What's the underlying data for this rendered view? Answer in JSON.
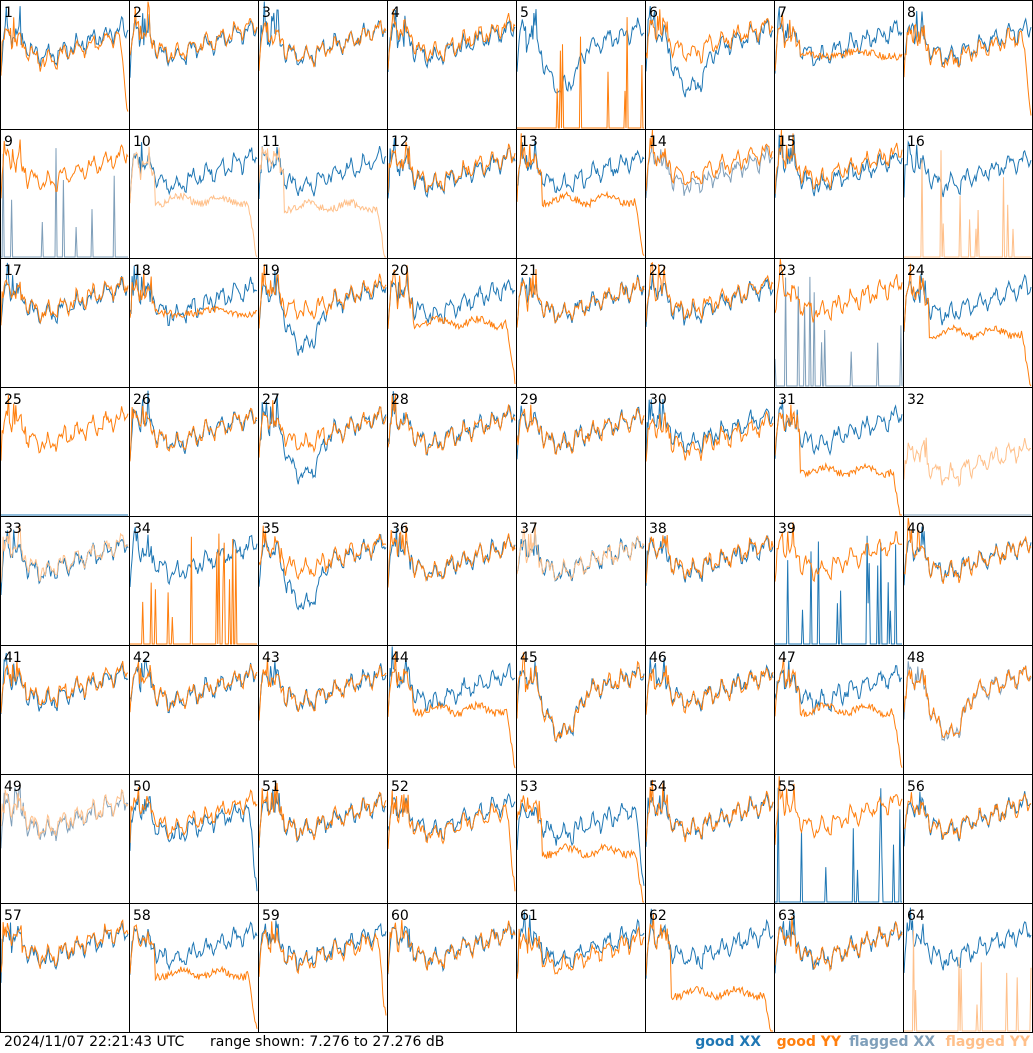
{
  "footer": {
    "timestamp": "2024/11/07 22:21:43 UTC",
    "range": "range shown: 7.276 to 27.276 dB"
  },
  "legend": [
    {
      "key": "good_xx",
      "label": "good XX",
      "color": "#1f77b4"
    },
    {
      "key": "good_yy",
      "label": "good YY",
      "color": "#ff7f0e"
    },
    {
      "key": "flagged_xx",
      "label": "flagged XX",
      "color": "#7f9fba"
    },
    {
      "key": "flagged_yy",
      "label": "flagged YY",
      "color": "#ffc08a"
    }
  ],
  "chart_data": {
    "type": "line",
    "description_units": "spectrum power in dB per antenna panel",
    "ylim": [
      7.276,
      27.276
    ],
    "grid": false,
    "layout": "8x8 small multiples",
    "panels": [
      {
        "label": "1",
        "xx": "good",
        "yy": "good",
        "xx_shape": "normal",
        "yy_shape": "dropoff",
        "yy_level": 0.62
      },
      {
        "label": "2",
        "xx": "good",
        "yy": "good",
        "xx_shape": "normal",
        "yy_shape": "normal",
        "yy_level": 0.62
      },
      {
        "label": "3",
        "xx": "good",
        "yy": "good",
        "xx_shape": "normal",
        "yy_shape": "normal",
        "yy_level": 0.6
      },
      {
        "label": "4",
        "xx": "good",
        "yy": "good",
        "xx_shape": "normal",
        "yy_shape": "normal",
        "yy_level": 0.63
      },
      {
        "label": "5",
        "xx": "good",
        "yy": "good",
        "xx_shape": "dip",
        "yy_shape": "spikes",
        "yy_level": 0.0
      },
      {
        "label": "6",
        "xx": "good",
        "yy": "good",
        "xx_shape": "dip",
        "yy_shape": "normal",
        "yy_level": 0.63
      },
      {
        "label": "7",
        "xx": "good",
        "yy": "good",
        "xx_shape": "normal",
        "yy_shape": "lowflat",
        "yy_level": 0.58
      },
      {
        "label": "8",
        "xx": "good",
        "yy": "good",
        "xx_shape": "normal",
        "yy_shape": "dropoff",
        "yy_level": 0.62
      },
      {
        "label": "9",
        "xx": "flagged",
        "yy": "good",
        "xx_shape": "spikes",
        "yy_shape": "normal",
        "yy_level": 0.62
      },
      {
        "label": "10",
        "xx": "good",
        "yy": "flagged",
        "xx_shape": "normal",
        "yy_shape": "lowdrop",
        "yy_level": 0.45
      },
      {
        "label": "11",
        "xx": "good",
        "yy": "flagged",
        "xx_shape": "normal",
        "yy_shape": "lowdrop",
        "yy_level": 0.4
      },
      {
        "label": "12",
        "xx": "good",
        "yy": "good",
        "xx_shape": "normal",
        "yy_shape": "normal",
        "yy_level": 0.62
      },
      {
        "label": "13",
        "xx": "good",
        "yy": "good",
        "xx_shape": "normal",
        "yy_shape": "lowdrop",
        "yy_level": 0.45
      },
      {
        "label": "14",
        "xx": "flagged",
        "yy": "good",
        "xx_shape": "normal",
        "yy_shape": "normal",
        "yy_level": 0.66
      },
      {
        "label": "15",
        "xx": "good",
        "yy": "good",
        "xx_shape": "normal",
        "yy_shape": "normal",
        "yy_level": 0.65
      },
      {
        "label": "16",
        "xx": "good",
        "yy": "flagged",
        "xx_shape": "normal",
        "yy_shape": "spikes",
        "yy_level": 0.0
      },
      {
        "label": "17",
        "xx": "good",
        "yy": "good",
        "xx_shape": "normal",
        "yy_shape": "normal",
        "yy_level": 0.62
      },
      {
        "label": "18",
        "xx": "good",
        "yy": "good",
        "xx_shape": "normal",
        "yy_shape": "lowflat",
        "yy_level": 0.58
      },
      {
        "label": "19",
        "xx": "good",
        "yy": "good",
        "xx_shape": "dip",
        "yy_shape": "normal",
        "yy_level": 0.62
      },
      {
        "label": "20",
        "xx": "good",
        "yy": "good",
        "xx_shape": "normal",
        "yy_shape": "lowdrop",
        "yy_level": 0.5
      },
      {
        "label": "21",
        "xx": "good",
        "yy": "good",
        "xx_shape": "normal",
        "yy_shape": "normal",
        "yy_level": 0.6
      },
      {
        "label": "22",
        "xx": "good",
        "yy": "good",
        "xx_shape": "normal",
        "yy_shape": "normal",
        "yy_level": 0.63
      },
      {
        "label": "23",
        "xx": "flagged",
        "yy": "good",
        "xx_shape": "spikes",
        "yy_shape": "normal",
        "yy_level": 0.62
      },
      {
        "label": "24",
        "xx": "good",
        "yy": "good",
        "xx_shape": "normal",
        "yy_shape": "lowdrop",
        "yy_level": 0.42
      },
      {
        "label": "25",
        "xx": "good",
        "yy": "good",
        "xx_shape": "flat0",
        "yy_shape": "normal",
        "yy_level": 0.6
      },
      {
        "label": "26",
        "xx": "good",
        "yy": "good",
        "xx_shape": "normal",
        "yy_shape": "normal",
        "yy_level": 0.6
      },
      {
        "label": "27",
        "xx": "good",
        "yy": "good",
        "xx_shape": "dip",
        "yy_shape": "normal",
        "yy_level": 0.6
      },
      {
        "label": "28",
        "xx": "good",
        "yy": "good",
        "xx_shape": "normal",
        "yy_shape": "normal",
        "yy_level": 0.6
      },
      {
        "label": "29",
        "xx": "good",
        "yy": "good",
        "xx_shape": "normal",
        "yy_shape": "normal",
        "yy_level": 0.6
      },
      {
        "label": "30",
        "xx": "good",
        "yy": "good",
        "xx_shape": "normal",
        "yy_shape": "normal",
        "yy_level": 0.55
      },
      {
        "label": "31",
        "xx": "good",
        "yy": "good",
        "xx_shape": "normal",
        "yy_shape": "lowdrop",
        "yy_level": 0.35
      },
      {
        "label": "32",
        "xx": "flagged",
        "yy": "flagged",
        "xx_shape": "flat0",
        "yy_shape": "normal",
        "yy_level": 0.35
      },
      {
        "label": "33",
        "xx": "good",
        "yy": "flagged",
        "xx_shape": "normal",
        "yy_shape": "normal",
        "yy_level": 0.62
      },
      {
        "label": "34",
        "xx": "good",
        "yy": "good",
        "xx_shape": "normal",
        "yy_shape": "spikes",
        "yy_level": 0.0
      },
      {
        "label": "35",
        "xx": "good",
        "yy": "good",
        "xx_shape": "dip",
        "yy_shape": "normal",
        "yy_level": 0.62
      },
      {
        "label": "36",
        "xx": "good",
        "yy": "good",
        "xx_shape": "normal",
        "yy_shape": "normal",
        "yy_level": 0.6
      },
      {
        "label": "37",
        "xx": "good",
        "yy": "flagged",
        "xx_shape": "normal",
        "yy_shape": "normal",
        "yy_level": 0.6
      },
      {
        "label": "38",
        "xx": "good",
        "yy": "good",
        "xx_shape": "normal",
        "yy_shape": "normal",
        "yy_level": 0.62
      },
      {
        "label": "39",
        "xx": "good",
        "yy": "good",
        "xx_shape": "spikes",
        "yy_shape": "normal",
        "yy_level": 0.62
      },
      {
        "label": "40",
        "xx": "good",
        "yy": "good",
        "xx_shape": "normal",
        "yy_shape": "normal",
        "yy_level": 0.6
      },
      {
        "label": "41",
        "xx": "good",
        "yy": "good",
        "xx_shape": "normal",
        "yy_shape": "normal",
        "yy_level": 0.62
      },
      {
        "label": "42",
        "xx": "good",
        "yy": "good",
        "xx_shape": "normal",
        "yy_shape": "normal",
        "yy_level": 0.6
      },
      {
        "label": "43",
        "xx": "good",
        "yy": "good",
        "xx_shape": "normal",
        "yy_shape": "normal",
        "yy_level": 0.6
      },
      {
        "label": "44",
        "xx": "good",
        "yy": "good",
        "xx_shape": "normal",
        "yy_shape": "lowdrop",
        "yy_level": 0.5
      },
      {
        "label": "45",
        "xx": "good",
        "yy": "good",
        "xx_shape": "dip",
        "yy_shape": "dip",
        "yy_level": 0.45
      },
      {
        "label": "46",
        "xx": "good",
        "yy": "good",
        "xx_shape": "normal",
        "yy_shape": "normal",
        "yy_level": 0.6
      },
      {
        "label": "47",
        "xx": "good",
        "yy": "good",
        "xx_shape": "normal",
        "yy_shape": "lowdrop",
        "yy_level": 0.5
      },
      {
        "label": "48",
        "xx": "flagged",
        "yy": "good",
        "xx_shape": "dip",
        "yy_shape": "dip",
        "yy_level": 0.45
      },
      {
        "label": "49",
        "xx": "flagged",
        "yy": "flagged",
        "xx_shape": "normal",
        "yy_shape": "normal",
        "yy_level": 0.62
      },
      {
        "label": "50",
        "xx": "good",
        "yy": "good",
        "xx_shape": "dropoff",
        "yy_shape": "normal",
        "yy_level": 0.62
      },
      {
        "label": "51",
        "xx": "good",
        "yy": "good",
        "xx_shape": "normal",
        "yy_shape": "normal",
        "yy_level": 0.6
      },
      {
        "label": "52",
        "xx": "good",
        "yy": "good",
        "xx_shape": "normal",
        "yy_shape": "dropoff",
        "yy_level": 0.62
      },
      {
        "label": "53",
        "xx": "good",
        "yy": "good",
        "xx_shape": "dropoff",
        "yy_shape": "lowdrop",
        "yy_level": 0.4
      },
      {
        "label": "54",
        "xx": "good",
        "yy": "good",
        "xx_shape": "normal",
        "yy_shape": "normal",
        "yy_level": 0.6
      },
      {
        "label": "55",
        "xx": "good",
        "yy": "good",
        "xx_shape": "spikes",
        "yy_shape": "normal",
        "yy_level": 0.62
      },
      {
        "label": "56",
        "xx": "good",
        "yy": "good",
        "xx_shape": "normal",
        "yy_shape": "normal",
        "yy_level": 0.6
      },
      {
        "label": "57",
        "xx": "good",
        "yy": "good",
        "xx_shape": "normal",
        "yy_shape": "normal",
        "yy_level": 0.62
      },
      {
        "label": "58",
        "xx": "good",
        "yy": "good",
        "xx_shape": "normal",
        "yy_shape": "lowdrop",
        "yy_level": 0.45
      },
      {
        "label": "59",
        "xx": "good",
        "yy": "good",
        "xx_shape": "normal",
        "yy_shape": "dropoff",
        "yy_level": 0.6
      },
      {
        "label": "60",
        "xx": "good",
        "yy": "good",
        "xx_shape": "normal",
        "yy_shape": "normal",
        "yy_level": 0.6
      },
      {
        "label": "61",
        "xx": "good",
        "yy": "good",
        "xx_shape": "normal",
        "yy_shape": "normal",
        "yy_level": 0.55
      },
      {
        "label": "62",
        "xx": "good",
        "yy": "good",
        "xx_shape": "normal",
        "yy_shape": "lowdrop",
        "yy_level": 0.3
      },
      {
        "label": "63",
        "xx": "good",
        "yy": "good",
        "xx_shape": "normal",
        "yy_shape": "normal",
        "yy_level": 0.6
      },
      {
        "label": "64",
        "xx": "good",
        "yy": "flagged",
        "xx_shape": "normal",
        "yy_shape": "spikes",
        "yy_level": 0.0
      }
    ]
  }
}
